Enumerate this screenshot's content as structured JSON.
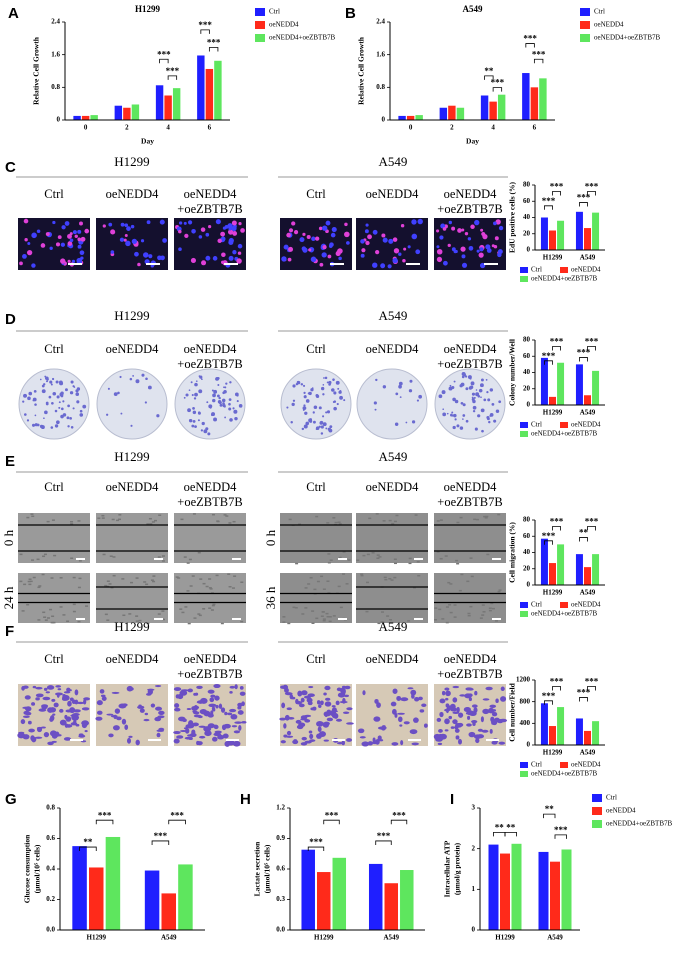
{
  "letters": [
    "A",
    "B",
    "C",
    "D",
    "E",
    "F",
    "G",
    "H",
    "I"
  ],
  "image_rows": [
    {
      "kind": "edu",
      "groups": [
        {
          "title": "H1299",
          "columns": [
            [
              "Ctrl"
            ],
            [
              "oeNEDD4"
            ],
            [
              "oeNEDD4",
              "+oeZBTB7B"
            ]
          ]
        },
        {
          "title": "A549",
          "columns": [
            [
              "Ctrl"
            ],
            [
              "oeNEDD4"
            ],
            [
              "oeNEDD4",
              "+oeZBTB7B"
            ]
          ]
        }
      ]
    },
    {
      "kind": "colony",
      "groups": [
        {
          "title": "H1299",
          "columns": [
            [
              "Ctrl"
            ],
            [
              "oeNEDD4"
            ],
            [
              "oeNEDD4",
              "+oeZBTB7B"
            ]
          ]
        },
        {
          "title": "A549",
          "columns": [
            [
              "Ctrl"
            ],
            [
              "oeNEDD4"
            ],
            [
              "oeNEDD4",
              "+oeZBTB7B"
            ]
          ]
        }
      ]
    },
    {
      "kind": "wound",
      "groups": [
        {
          "title": "H1299",
          "columns": [
            [
              "Ctrl"
            ],
            [
              "oeNEDD4"
            ],
            [
              "oeNEDD4",
              "+oeZBTB7B"
            ]
          ],
          "row_labels": [
            "0 h",
            "24 h"
          ]
        },
        {
          "title": "A549",
          "columns": [
            [
              "Ctrl"
            ],
            [
              "oeNEDD4"
            ],
            [
              "oeNEDD4",
              "+oeZBTB7B"
            ]
          ],
          "row_labels": [
            "0 h",
            "36 h"
          ]
        }
      ]
    },
    {
      "kind": "transwell",
      "groups": [
        {
          "title": "H1299",
          "columns": [
            [
              "Ctrl"
            ],
            [
              "oeNEDD4"
            ],
            [
              "oeNEDD4",
              "+oeZBTB7B"
            ]
          ]
        },
        {
          "title": "A549",
          "columns": [
            [
              "Ctrl"
            ],
            [
              "oeNEDD4"
            ],
            [
              "oeNEDD4",
              "+oeZBTB7B"
            ]
          ]
        }
      ]
    }
  ],
  "chart_data": [
    {
      "type": "bar",
      "title": "H1299",
      "x_label": "Day",
      "y_label": [
        "Relative Cell Growth"
      ],
      "categories": [
        "0",
        "2",
        "4",
        "6"
      ],
      "series": [
        {
          "name": "Ctrl",
          "color": "#1f1fff",
          "values": [
            0.1,
            0.35,
            0.85,
            1.58
          ]
        },
        {
          "name": "oeNEDD4",
          "color": "#ff2a1a",
          "values": [
            0.1,
            0.3,
            0.6,
            1.25
          ]
        },
        {
          "name": "oeNEDD4+oeZBTB7B",
          "color": "#5ee65e",
          "values": [
            0.12,
            0.38,
            0.78,
            1.45
          ]
        }
      ],
      "ylim": [
        0,
        2.4
      ],
      "yticks": [
        0,
        0.8,
        1.6,
        2.4
      ],
      "legend": "right",
      "annotations": [
        "***",
        "***",
        "***",
        "***"
      ]
    },
    {
      "type": "bar",
      "title": "A549",
      "x_label": "Day",
      "y_label": [
        "Relative Cell Growth"
      ],
      "categories": [
        "0",
        "2",
        "4",
        "6"
      ],
      "series": [
        {
          "name": "Ctrl",
          "color": "#1f1fff",
          "values": [
            0.1,
            0.3,
            0.6,
            1.15
          ]
        },
        {
          "name": "oeNEDD4",
          "color": "#ff2a1a",
          "values": [
            0.1,
            0.35,
            0.45,
            0.8
          ]
        },
        {
          "name": "oeNEDD4+oeZBTB7B",
          "color": "#5ee65e",
          "values": [
            0.12,
            0.3,
            0.62,
            1.02
          ]
        }
      ],
      "ylim": [
        0,
        2.4
      ],
      "yticks": [
        0,
        0.8,
        1.6,
        2.4
      ],
      "legend": "right",
      "annotations": [
        "**",
        "***",
        "***",
        "***"
      ]
    },
    {
      "type": "bar",
      "y_label": [
        "EdU positive cells (%)"
      ],
      "categories": [
        "H1299",
        "A549"
      ],
      "series": [
        {
          "name": "Ctrl",
          "color": "#1f1fff",
          "values": [
            40,
            47
          ]
        },
        {
          "name": "oeNEDD4",
          "color": "#ff2a1a",
          "values": [
            24,
            27
          ]
        },
        {
          "name": "oeNEDD4+oeZBTB7B",
          "color": "#5ee65e",
          "values": [
            36,
            46
          ]
        }
      ],
      "ylim": [
        0,
        80
      ],
      "yticks": [
        0,
        20,
        40,
        60,
        80
      ],
      "legend": "below",
      "annotations": [
        "***",
        "***",
        "***",
        "***"
      ]
    },
    {
      "type": "bar",
      "y_label": [
        "Colony number/Well"
      ],
      "categories": [
        "H1299",
        "A549"
      ],
      "series": [
        {
          "name": "Ctrl",
          "color": "#1f1fff",
          "values": [
            58,
            50
          ]
        },
        {
          "name": "oeNEDD4",
          "color": "#ff2a1a",
          "values": [
            10,
            12
          ]
        },
        {
          "name": "oeNEDD4+oeZBTB7B",
          "color": "#5ee65e",
          "values": [
            52,
            42
          ]
        }
      ],
      "ylim": [
        0,
        80
      ],
      "yticks": [
        0,
        20,
        40,
        60,
        80
      ],
      "legend": "below",
      "annotations": [
        "***",
        "***",
        "***",
        "***"
      ]
    },
    {
      "type": "bar",
      "y_label": [
        "Cell migration (%)"
      ],
      "categories": [
        "H1299",
        "A549"
      ],
      "series": [
        {
          "name": "Ctrl",
          "color": "#1f1fff",
          "values": [
            57,
            38
          ]
        },
        {
          "name": "oeNEDD4",
          "color": "#ff2a1a",
          "values": [
            27,
            22
          ]
        },
        {
          "name": "oeNEDD4+oeZBTB7B",
          "color": "#5ee65e",
          "values": [
            50,
            38
          ]
        }
      ],
      "ylim": [
        0,
        80
      ],
      "yticks": [
        0,
        20,
        40,
        60,
        80
      ],
      "legend": "below",
      "annotations": [
        "***",
        "***",
        "**",
        "***"
      ]
    },
    {
      "type": "bar",
      "y_label": [
        "Cell number/Field"
      ],
      "categories": [
        "H1299",
        "A549"
      ],
      "series": [
        {
          "name": "Ctrl",
          "color": "#1f1fff",
          "values": [
            770,
            490
          ]
        },
        {
          "name": "oeNEDD4",
          "color": "#ff2a1a",
          "values": [
            350,
            260
          ]
        },
        {
          "name": "oeNEDD4+oeZBTB7B",
          "color": "#5ee65e",
          "values": [
            700,
            440
          ]
        }
      ],
      "ylim": [
        0,
        1200
      ],
      "yticks": [
        0,
        400,
        800,
        1200
      ],
      "legend": "below",
      "annotations": [
        "***",
        "***",
        "***",
        "***"
      ]
    },
    {
      "type": "bar",
      "y_label": [
        "Glucose consumption",
        "(μmol/10⁵ cells)"
      ],
      "categories": [
        "H1299",
        "A549"
      ],
      "series": [
        {
          "color": "#1f1fff",
          "values": [
            0.55,
            0.39
          ]
        },
        {
          "color": "#ff2a1a",
          "values": [
            0.41,
            0.24
          ]
        },
        {
          "color": "#5ee65e",
          "values": [
            0.61,
            0.43
          ]
        }
      ],
      "ylim": [
        0,
        0.8
      ],
      "yticks": [
        {
          "value": 0,
          "label": "0.0"
        },
        0.2,
        0.4,
        0.6,
        0.8
      ],
      "legend": "none",
      "annotations": [
        "**",
        "***",
        "***",
        "***"
      ]
    },
    {
      "type": "bar",
      "y_label": [
        "Lactate secretion",
        "(μmol/10⁵ cells)"
      ],
      "categories": [
        "H1299",
        "A549"
      ],
      "series": [
        {
          "color": "#1f1fff",
          "values": [
            0.79,
            0.65
          ]
        },
        {
          "color": "#ff2a1a",
          "values": [
            0.57,
            0.46
          ]
        },
        {
          "color": "#5ee65e",
          "values": [
            0.71,
            0.59
          ]
        }
      ],
      "ylim": [
        0,
        1.2
      ],
      "yticks": [
        {
          "value": 0,
          "label": "0.0"
        },
        0.3,
        0.6,
        0.9,
        1.2
      ],
      "legend": "none",
      "annotations": [
        "***",
        "***",
        "***",
        "***"
      ]
    },
    {
      "type": "bar",
      "y_label": [
        "Intracellular ATP",
        "(μmol/g protein)"
      ],
      "categories": [
        "H1299",
        "A549"
      ],
      "series": [
        {
          "name": "Ctrl",
          "color": "#1f1fff",
          "values": [
            2.1,
            1.92
          ]
        },
        {
          "name": "oeNEDD4",
          "color": "#ff2a1a",
          "values": [
            1.88,
            1.68
          ]
        },
        {
          "name": "oeNEDD4+oeZBTB7B",
          "color": "#5ee65e",
          "values": [
            2.12,
            1.98
          ]
        }
      ],
      "ylim": [
        0,
        3
      ],
      "yticks": [
        0,
        1,
        2,
        3
      ],
      "legend": "right",
      "annotations": [
        "**",
        "**",
        "**",
        "***"
      ]
    }
  ]
}
